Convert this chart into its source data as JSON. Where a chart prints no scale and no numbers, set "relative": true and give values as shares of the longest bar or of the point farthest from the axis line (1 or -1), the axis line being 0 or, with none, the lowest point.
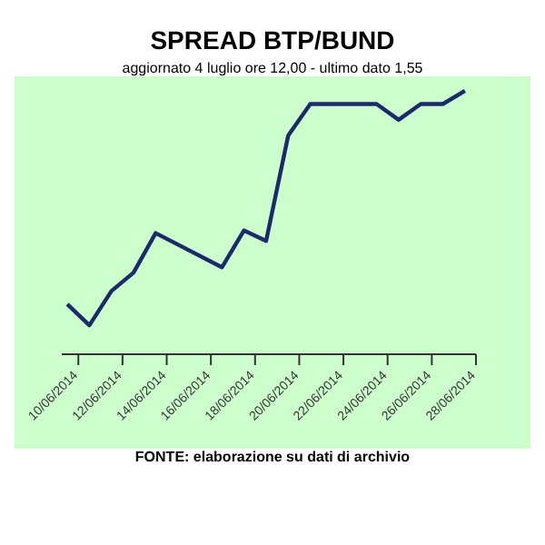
{
  "chart_data": {
    "type": "line",
    "title": "SPREAD BTP/BUND",
    "subtitle": "aggiornato 4 luglio ore 12,00 - ultimo dato 1,55",
    "relative": true,
    "marker": "none",
    "line_style": "solid",
    "x": [
      "2014-06-09T12:00",
      "2014-06-10T12:00",
      "2014-06-11T12:00",
      "2014-06-12T12:00",
      "2014-06-13T12:00",
      "2014-06-16T12:00",
      "2014-06-17T12:00",
      "2014-06-18T12:00",
      "2014-06-19T12:00",
      "2014-06-20T12:00",
      "2014-06-23T12:00",
      "2014-06-24T12:00",
      "2014-06-25T12:00",
      "2014-06-26T12:00",
      "2014-06-27T12:00"
    ],
    "xlim": [
      "2014-06-09T06:00",
      "2014-06-28T00:00"
    ],
    "xticks": [
      {
        "value": "2014-06-10",
        "label": "10/06/2014"
      },
      {
        "value": "2014-06-12",
        "label": "12/06/2014"
      },
      {
        "value": "2014-06-14",
        "label": "14/06/2014"
      },
      {
        "value": "2014-06-16",
        "label": "16/06/2014"
      },
      {
        "value": "2014-06-18",
        "label": "18/06/2014"
      },
      {
        "value": "2014-06-20",
        "label": "20/06/2014"
      },
      {
        "value": "2014-06-22",
        "label": "22/06/2014"
      },
      {
        "value": "2014-06-24",
        "label": "24/06/2014"
      },
      {
        "value": "2014-06-26",
        "label": "26/06/2014"
      },
      {
        "value": "2014-06-28",
        "label": "28/06/2014"
      }
    ],
    "series": [
      {
        "color": "#1b2a6b",
        "values": [
          0.19,
          0.11,
          0.24,
          0.31,
          0.46,
          0.33,
          0.47,
          0.43,
          0.83,
          0.95,
          0.95,
          0.89,
          0.95,
          0.95,
          1
        ]
      }
    ],
    "annotations": [
      "FONTE: elaborazione su dati di archivio"
    ]
  }
}
